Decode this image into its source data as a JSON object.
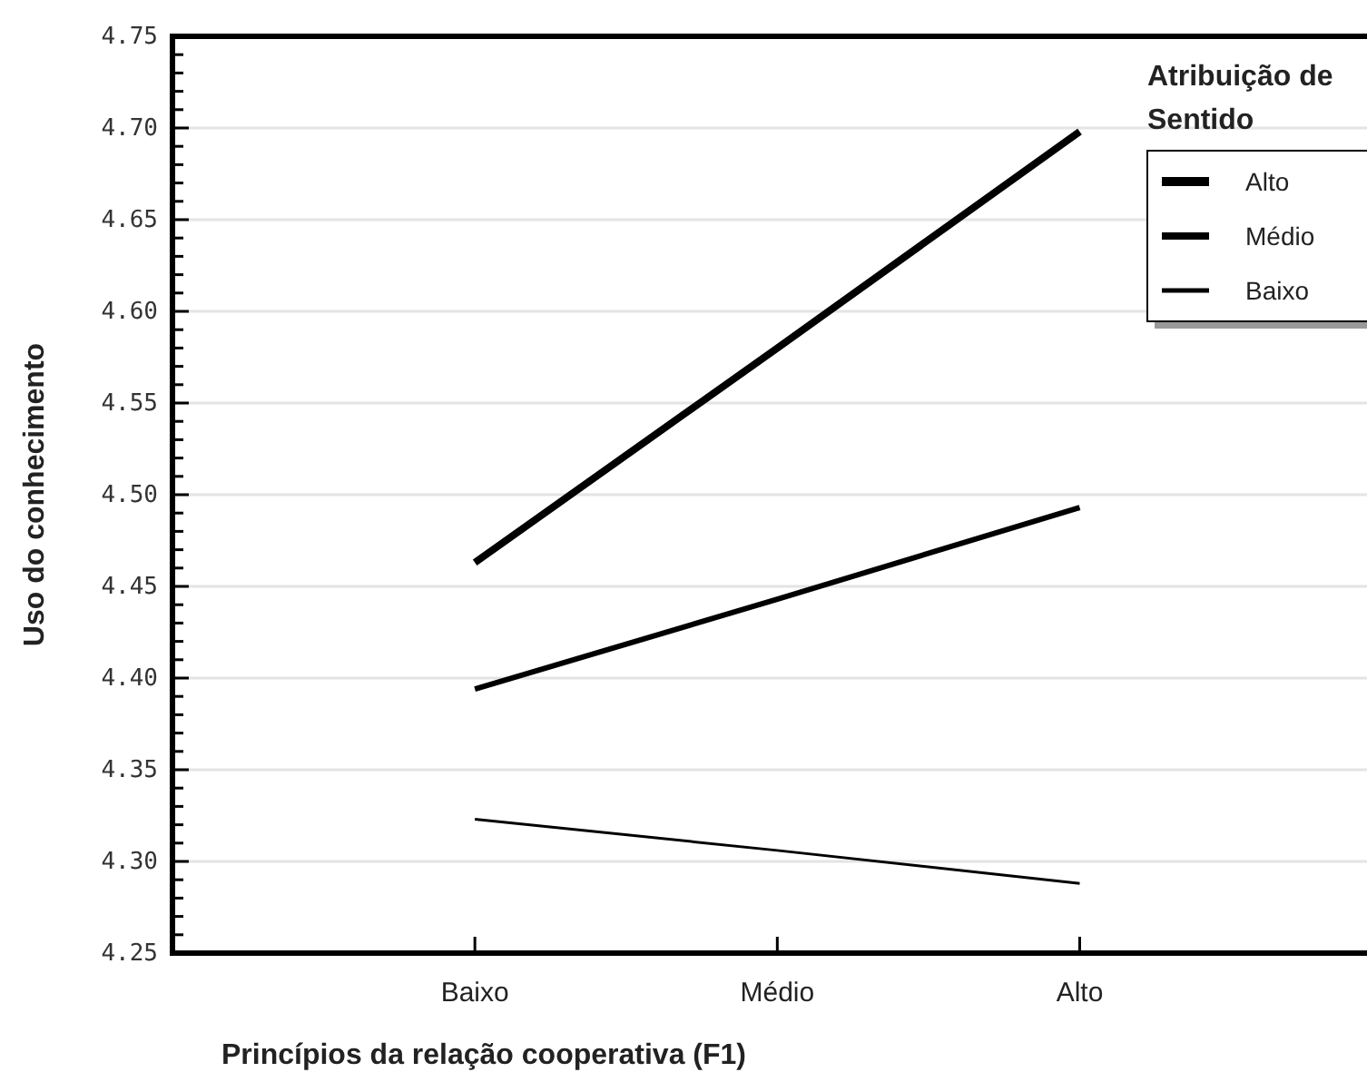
{
  "chart_data": {
    "type": "line",
    "xlabel": "Princípios da relação cooperativa (F1)",
    "ylabel": "Uso do conhecimento",
    "legend_title": "Atribuição de Sentido",
    "categories": [
      "Baixo",
      "Médio",
      "Alto"
    ],
    "series": [
      {
        "name": "Alto",
        "color": "#000000",
        "values": [
          4.463,
          4.58,
          4.698
        ]
      },
      {
        "name": "Médio",
        "color": "#000000",
        "values": [
          4.394,
          4.443,
          4.493
        ]
      },
      {
        "name": "Baixo",
        "color": "#000000",
        "values": [
          4.323,
          4.306,
          4.288
        ]
      }
    ],
    "ylim": [
      4.25,
      4.75
    ],
    "yticks": [
      "4.25",
      {
        "value": 4.26,
        "label": null
      },
      {
        "value": 4.27,
        "label": null
      },
      {
        "value": 4.28,
        "label": null
      },
      {
        "value": 4.29,
        "label": null
      },
      {
        "value": 4.3,
        "label": "4.30"
      },
      {
        "value": 4.31,
        "label": null
      },
      {
        "value": 4.32,
        "label": null
      },
      {
        "value": 4.33,
        "label": null
      },
      {
        "value": 4.34,
        "label": null
      },
      4.35,
      {
        "value": 4.36,
        "label": null
      },
      {
        "value": 4.37,
        "label": null
      },
      {
        "value": 4.38,
        "label": null
      },
      {
        "value": 4.39,
        "label": null
      },
      {
        "value": 4.4,
        "label": "4.40"
      },
      {
        "value": 4.41,
        "label": null
      },
      {
        "value": 4.42,
        "label": null
      },
      {
        "value": 4.43,
        "label": null
      },
      {
        "value": 4.44,
        "label": null
      },
      4.45,
      {
        "value": 4.46,
        "label": null
      },
      {
        "value": 4.47,
        "label": null
      },
      {
        "value": 4.48,
        "label": null
      },
      {
        "value": 4.49,
        "label": null
      },
      {
        "value": 4.5,
        "label": "4.50"
      },
      {
        "value": 4.51,
        "label": null
      },
      {
        "value": 4.52,
        "label": null
      },
      {
        "value": 4.53,
        "label": null
      },
      {
        "value": 4.54,
        "label": null
      },
      4.55,
      {
        "value": 4.56,
        "label": null
      },
      {
        "value": 4.57,
        "label": null
      },
      {
        "value": 4.58,
        "label": null
      },
      {
        "value": 4.59,
        "label": null
      },
      {
        "value": 4.6,
        "label": "4.60"
      },
      {
        "value": 4.61,
        "label": null
      },
      {
        "value": 4.62,
        "label": null
      },
      {
        "value": 4.63,
        "label": null
      },
      {
        "value": 4.64,
        "label": null
      },
      4.65,
      {
        "value": 4.66,
        "label": null
      },
      {
        "value": 4.67,
        "label": null
      },
      {
        "value": 4.68,
        "label": null
      },
      {
        "value": 4.69,
        "label": null
      },
      {
        "value": 4.7,
        "label": "4.70"
      },
      {
        "value": 4.71,
        "label": null
      },
      {
        "value": 4.72,
        "label": null
      },
      {
        "value": 4.73,
        "label": null
      },
      {
        "value": 4.74,
        "label": null
      },
      4.75
    ],
    "grid": "y",
    "legend": "top right",
    "marker": "none",
    "line_style": "solid"
  }
}
